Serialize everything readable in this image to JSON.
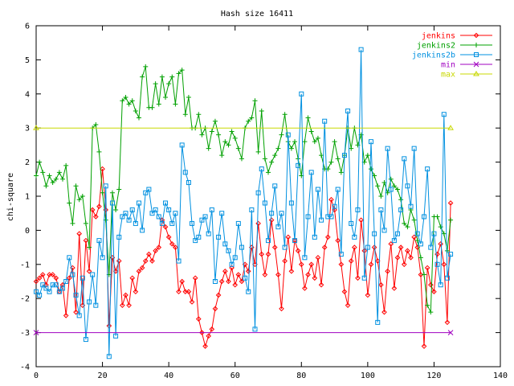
{
  "chart_data": {
    "type": "line",
    "title": "Hash size 16411",
    "xlabel": "",
    "ylabel": "chi-square",
    "xlim": [
      0,
      140
    ],
    "ylim": [
      -4,
      6
    ],
    "xticks": [
      0,
      20,
      40,
      60,
      80,
      100,
      120,
      140
    ],
    "yticks": [
      -4,
      -3,
      -2,
      -1,
      0,
      1,
      2,
      3,
      4,
      5,
      6
    ],
    "grid": false,
    "legend_position": "top-right",
    "series": [
      {
        "name": "jenkins",
        "color": "#ff0000",
        "marker": "diamond",
        "x": [
          0,
          1,
          2,
          3,
          4,
          5,
          6,
          7,
          8,
          9,
          10,
          11,
          12,
          13,
          14,
          15,
          16,
          17,
          18,
          19,
          20,
          21,
          22,
          23,
          24,
          25,
          26,
          27,
          28,
          29,
          30,
          31,
          32,
          33,
          34,
          35,
          36,
          37,
          38,
          39,
          40,
          41,
          42,
          43,
          44,
          45,
          46,
          47,
          48,
          49,
          50,
          51,
          52,
          53,
          54,
          55,
          56,
          57,
          58,
          59,
          60,
          61,
          62,
          63,
          64,
          65,
          66,
          67,
          68,
          69,
          70,
          71,
          72,
          73,
          74,
          75,
          76,
          77,
          78,
          79,
          80,
          81,
          82,
          83,
          84,
          85,
          86,
          87,
          88,
          89,
          90,
          91,
          92,
          93,
          94,
          95,
          96,
          97,
          98,
          99,
          100,
          101,
          102,
          103,
          104,
          105,
          106,
          107,
          108,
          109,
          110,
          111,
          112,
          113,
          114,
          115,
          116,
          117,
          118,
          119,
          120,
          121,
          122,
          123,
          124,
          125
        ],
        "y": [
          -1.5,
          -1.4,
          -1.3,
          -1.6,
          -1.3,
          -1.3,
          -1.4,
          -1.8,
          -1.6,
          -2.5,
          -1.4,
          -1.1,
          -2.4,
          -0.1,
          -2.2,
          -0.3,
          -1.2,
          0.6,
          0.4,
          0.7,
          1.8,
          0.6,
          -2.8,
          -0.8,
          -1.2,
          -0.9,
          -2.2,
          -1.9,
          -2.2,
          -1.4,
          -1.8,
          -1.2,
          -1.1,
          -0.9,
          -0.7,
          -0.9,
          -0.6,
          -0.5,
          0.3,
          0.1,
          -0.2,
          -0.4,
          -0.5,
          -1.8,
          -1.5,
          -1.8,
          -1.8,
          -2.1,
          -1.4,
          -2.6,
          -3.0,
          -3.4,
          -3.1,
          -2.9,
          -2.3,
          -1.9,
          -1.5,
          -1.2,
          -1.5,
          -1.1,
          -1.6,
          -1.3,
          -1.5,
          -1.0,
          -1.2,
          -0.5,
          -1.0,
          0.2,
          -0.7,
          -1.3,
          -0.7,
          0.3,
          -0.5,
          -1.3,
          -2.3,
          -0.9,
          -0.2,
          -1.2,
          -0.3,
          -0.6,
          -1.0,
          -1.7,
          -1.3,
          -1.0,
          -1.4,
          -0.8,
          -1.6,
          -0.5,
          -0.2,
          0.9,
          0.6,
          -0.3,
          -1.0,
          -1.8,
          -2.2,
          -0.9,
          -0.5,
          -1.4,
          0.3,
          -0.6,
          -1.9,
          -1.0,
          -0.5,
          -0.9,
          -1.6,
          -2.4,
          -1.2,
          -0.4,
          -1.7,
          -0.8,
          -0.5,
          -1.0,
          -0.6,
          -0.8,
          -0.2,
          -0.5,
          -1.3,
          -3.4,
          -1.1,
          -1.6,
          -1.8,
          -0.7,
          -0.4,
          -1.0,
          -2.7,
          0.8
        ]
      },
      {
        "name": "jenkins2",
        "color": "#00a000",
        "marker": "plus",
        "x": [
          0,
          1,
          2,
          3,
          4,
          5,
          6,
          7,
          8,
          9,
          10,
          11,
          12,
          13,
          14,
          15,
          16,
          17,
          18,
          19,
          20,
          21,
          22,
          23,
          24,
          25,
          26,
          27,
          28,
          29,
          30,
          31,
          32,
          33,
          34,
          35,
          36,
          37,
          38,
          39,
          40,
          41,
          42,
          43,
          44,
          45,
          46,
          47,
          48,
          49,
          50,
          51,
          52,
          53,
          54,
          55,
          56,
          57,
          58,
          59,
          60,
          61,
          62,
          63,
          64,
          65,
          66,
          67,
          68,
          69,
          70,
          71,
          72,
          73,
          74,
          75,
          76,
          77,
          78,
          79,
          80,
          81,
          82,
          83,
          84,
          85,
          86,
          87,
          88,
          89,
          90,
          91,
          92,
          93,
          94,
          95,
          96,
          97,
          98,
          99,
          100,
          101,
          102,
          103,
          104,
          105,
          106,
          107,
          108,
          109,
          110,
          111,
          112,
          113,
          114,
          115,
          116,
          117,
          118,
          119,
          120,
          121,
          122,
          123,
          124,
          125
        ],
        "y": [
          1.6,
          2.0,
          1.7,
          1.3,
          1.6,
          1.4,
          1.5,
          1.7,
          1.5,
          1.9,
          0.8,
          0.2,
          1.3,
          0.9,
          1.0,
          0.2,
          -0.5,
          3.0,
          3.1,
          2.3,
          1.1,
          0.3,
          -1.3,
          1.1,
          0.6,
          1.2,
          3.8,
          3.9,
          3.7,
          3.8,
          3.5,
          3.3,
          4.5,
          4.8,
          3.6,
          3.6,
          4.3,
          3.7,
          4.5,
          3.9,
          4.3,
          4.5,
          3.7,
          4.6,
          4.7,
          3.4,
          3.9,
          3.0,
          3.0,
          3.4,
          2.8,
          3.0,
          2.4,
          2.9,
          3.2,
          2.8,
          2.2,
          2.6,
          2.5,
          2.9,
          2.7,
          2.4,
          2.1,
          3.0,
          3.2,
          3.3,
          3.8,
          2.3,
          3.5,
          2.1,
          1.7,
          2.0,
          2.2,
          2.4,
          2.8,
          3.4,
          2.6,
          2.4,
          2.6,
          2.1,
          1.6,
          2.6,
          3.3,
          2.9,
          2.6,
          2.7,
          2.2,
          1.8,
          1.8,
          2.0,
          2.6,
          2.1,
          1.7,
          2.2,
          3.0,
          2.4,
          3.0,
          2.5,
          2.8,
          2.0,
          2.2,
          1.8,
          1.6,
          1.3,
          1.0,
          1.4,
          1.1,
          1.5,
          1.3,
          1.2,
          0.9,
          0.2,
          0.1,
          0.6,
          0.3,
          -0.3,
          -0.8,
          -1.3,
          -2.2,
          -2.4,
          0.4,
          0.4,
          0.1,
          -0.1,
          -0.6,
          0.3
        ]
      },
      {
        "name": "jenkins2b",
        "color": "#0090e0",
        "marker": "square",
        "x": [
          0,
          1,
          2,
          3,
          4,
          5,
          6,
          7,
          8,
          9,
          10,
          11,
          12,
          13,
          14,
          15,
          16,
          17,
          18,
          19,
          20,
          21,
          22,
          23,
          24,
          25,
          26,
          27,
          28,
          29,
          30,
          31,
          32,
          33,
          34,
          35,
          36,
          37,
          38,
          39,
          40,
          41,
          42,
          43,
          44,
          45,
          46,
          47,
          48,
          49,
          50,
          51,
          52,
          53,
          54,
          55,
          56,
          57,
          58,
          59,
          60,
          61,
          62,
          63,
          64,
          65,
          66,
          67,
          68,
          69,
          70,
          71,
          72,
          73,
          74,
          75,
          76,
          77,
          78,
          79,
          80,
          81,
          82,
          83,
          84,
          85,
          86,
          87,
          88,
          89,
          90,
          91,
          92,
          93,
          94,
          95,
          96,
          97,
          98,
          99,
          100,
          101,
          102,
          103,
          104,
          105,
          106,
          107,
          108,
          109,
          110,
          111,
          112,
          113,
          114,
          115,
          116,
          117,
          118,
          119,
          120,
          121,
          122,
          123,
          124,
          125
        ],
        "y": [
          -1.8,
          -1.9,
          -1.6,
          -1.7,
          -1.8,
          -1.6,
          -1.6,
          -1.8,
          -1.7,
          -1.5,
          -0.8,
          -1.3,
          -1.9,
          -2.5,
          -1.4,
          -3.2,
          -2.1,
          -1.3,
          -2.2,
          -0.3,
          -0.8,
          1.3,
          -3.7,
          0.8,
          -3.1,
          -0.2,
          0.4,
          0.5,
          0.3,
          0.6,
          0.2,
          0.8,
          0.0,
          1.1,
          1.2,
          0.5,
          0.6,
          0.4,
          0.2,
          0.8,
          0.6,
          0.2,
          0.5,
          -0.9,
          2.5,
          1.7,
          1.4,
          0.2,
          -0.3,
          -0.2,
          0.3,
          0.4,
          -0.1,
          0.6,
          -1.5,
          -0.2,
          0.5,
          -0.4,
          -0.6,
          -1.0,
          -0.8,
          0.2,
          -0.5,
          -1.4,
          -1.8,
          0.6,
          -2.9,
          1.1,
          1.8,
          0.8,
          -0.3,
          0.5,
          1.3,
          0.1,
          0.5,
          -0.5,
          2.8,
          0.8,
          -0.3,
          1.9,
          4.0,
          -0.8,
          0.4,
          1.7,
          -0.2,
          1.2,
          0.3,
          3.2,
          0.4,
          0.4,
          0.7,
          1.2,
          -0.7,
          2.2,
          3.5,
          0.2,
          -0.2,
          0.6,
          5.3,
          -1.4,
          -0.5,
          2.6,
          -0.1,
          -2.7,
          0.6,
          0.0,
          2.4,
          1.2,
          -0.3,
          -0.1,
          0.6,
          2.1,
          1.3,
          0.7,
          2.4,
          -0.1,
          -0.4,
          0.4,
          1.8,
          -0.5,
          -0.1,
          -1.0,
          -1.6,
          3.4,
          -1.4,
          -0.7
        ]
      },
      {
        "name": "min",
        "color": "#a000c0",
        "marker": "cross",
        "x": [
          0,
          125
        ],
        "y": [
          -3,
          -3
        ]
      },
      {
        "name": "max",
        "color": "#c8d800",
        "marker": "triangle",
        "x": [
          0,
          125
        ],
        "y": [
          3,
          3
        ]
      }
    ]
  }
}
